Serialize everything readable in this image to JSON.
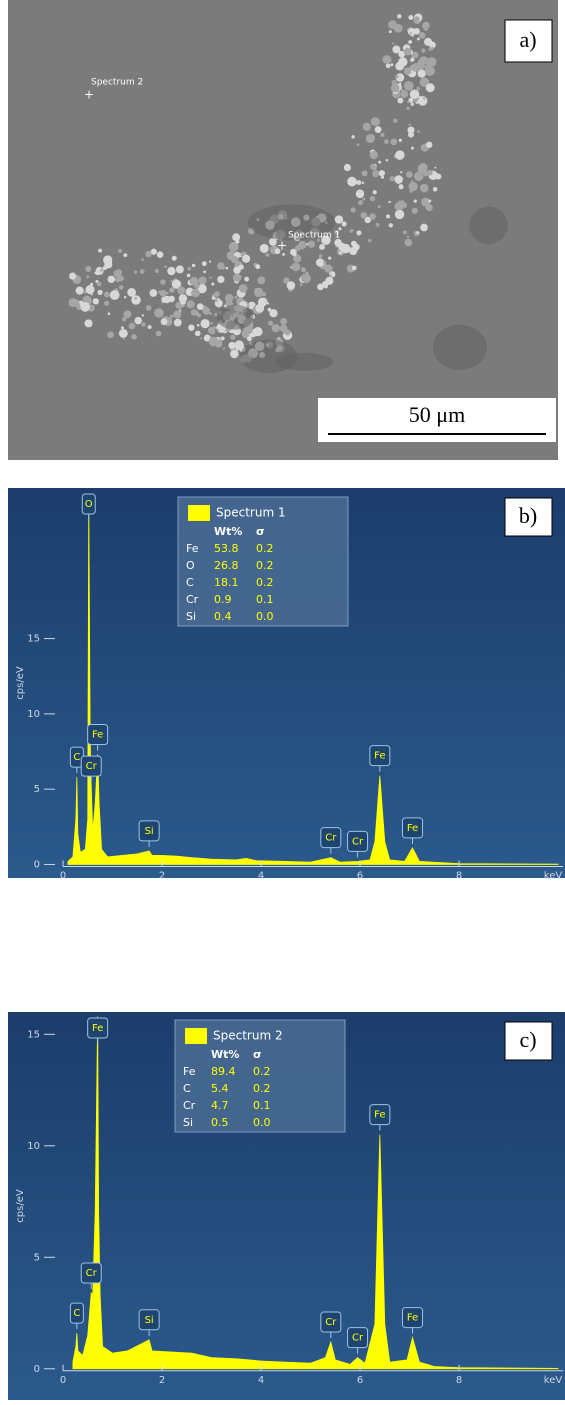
{
  "panel_a": {
    "label": "a)",
    "markers": [
      "Spectrum 2",
      "Spectrum 1"
    ],
    "scale_bar": "50 μm"
  },
  "chart_data": [
    {
      "type": "area",
      "panel_label": "b)",
      "x_label": "keV",
      "y_label": "cps/eV",
      "xlim": [
        0,
        10.1
      ],
      "xticks": [
        0,
        2,
        4,
        6,
        8
      ],
      "ylim": [
        -0.9,
        25
      ],
      "yticks": [
        0,
        5,
        10,
        15
      ],
      "series": [
        {
          "name": "Spectrum 1",
          "color": "#ffff00",
          "x": [
            0.1,
            0.2,
            0.26,
            0.28,
            0.3,
            0.35,
            0.45,
            0.5,
            0.52,
            0.55,
            0.57,
            0.6,
            0.65,
            0.7,
            0.73,
            0.78,
            0.9,
            1.2,
            1.5,
            1.74,
            1.8,
            2.0,
            2.3,
            2.6,
            3.0,
            3.5,
            3.7,
            3.9,
            4.5,
            5.0,
            5.41,
            5.6,
            5.95,
            6.2,
            6.3,
            6.4,
            6.5,
            6.6,
            6.9,
            7.06,
            7.2,
            8.0,
            10.0
          ],
          "values": [
            0.2,
            0.5,
            3,
            5.8,
            2,
            0.8,
            1.0,
            3,
            24.5,
            8,
            5.2,
            2.2,
            4,
            7.3,
            4,
            1.0,
            0.5,
            0.6,
            0.7,
            0.9,
            0.6,
            0.6,
            0.55,
            0.45,
            0.35,
            0.3,
            0.4,
            0.25,
            0.2,
            0.15,
            0.45,
            0.15,
            0.2,
            0.3,
            1.5,
            5.9,
            1.5,
            0.3,
            0.2,
            1.1,
            0.2,
            0.05,
            0.02
          ]
        }
      ],
      "peaks": [
        {
          "label": "O",
          "x": 0.52
        },
        {
          "label": "C",
          "x": 0.28
        },
        {
          "label": "Cr",
          "x": 0.57
        },
        {
          "label": "Fe",
          "x": 0.7
        },
        {
          "label": "Si",
          "x": 1.74
        },
        {
          "label": "Cr",
          "x": 5.41
        },
        {
          "label": "Cr",
          "x": 5.95
        },
        {
          "label": "Fe",
          "x": 6.4
        },
        {
          "label": "Fe",
          "x": 7.06
        }
      ],
      "table": {
        "columns": [
          "Wt%",
          "σ"
        ],
        "rows": [
          [
            "Fe",
            "53.8",
            "0.2"
          ],
          [
            "O",
            "26.8",
            "0.2"
          ],
          [
            "C",
            "18.1",
            "0.2"
          ],
          [
            "Cr",
            "0.9",
            "0.1"
          ],
          [
            "Si",
            "0.4",
            "0.0"
          ]
        ]
      }
    },
    {
      "type": "area",
      "panel_label": "c)",
      "x_label": "keV",
      "y_label": "cps/eV",
      "xlim": [
        0,
        10.1
      ],
      "xticks": [
        0,
        2,
        4,
        6,
        8
      ],
      "ylim": [
        -1.4,
        16
      ],
      "yticks": [
        0,
        5,
        10,
        15
      ],
      "series": [
        {
          "name": "Spectrum 2",
          "color": "#ffff00",
          "x": [
            0.2,
            0.26,
            0.28,
            0.3,
            0.4,
            0.5,
            0.57,
            0.6,
            0.65,
            0.7,
            0.72,
            0.75,
            0.8,
            1.0,
            1.3,
            1.74,
            1.8,
            2.2,
            2.6,
            3.0,
            3.5,
            4.0,
            4.5,
            5.0,
            5.3,
            5.41,
            5.5,
            5.8,
            5.95,
            6.1,
            6.3,
            6.4,
            6.5,
            6.6,
            6.95,
            7.06,
            7.2,
            7.5,
            8.0,
            10.0
          ],
          "values": [
            0.3,
            1.0,
            1.6,
            0.8,
            0.6,
            1.5,
            3.4,
            3.3,
            7,
            15.8,
            7,
            3.3,
            1.0,
            0.7,
            0.8,
            1.3,
            0.8,
            0.75,
            0.7,
            0.5,
            0.45,
            0.35,
            0.3,
            0.25,
            0.5,
            1.2,
            0.4,
            0.2,
            0.5,
            0.25,
            2,
            10.5,
            2,
            0.3,
            0.4,
            1.4,
            0.3,
            0.1,
            0.05,
            0.02
          ]
        }
      ],
      "peaks": [
        {
          "label": "Fe",
          "x": 0.7
        },
        {
          "label": "Cr",
          "x": 0.57
        },
        {
          "label": "C",
          "x": 0.28
        },
        {
          "label": "Si",
          "x": 1.74
        },
        {
          "label": "Cr",
          "x": 5.41
        },
        {
          "label": "Cr",
          "x": 5.95
        },
        {
          "label": "Fe",
          "x": 6.4
        },
        {
          "label": "Fe",
          "x": 7.06
        }
      ],
      "table": {
        "columns": [
          "Wt%",
          "σ"
        ],
        "rows": [
          [
            "Fe",
            "89.4",
            "0.2"
          ],
          [
            "C",
            "5.4",
            "0.2"
          ],
          [
            "Cr",
            "4.7",
            "0.1"
          ],
          [
            "Si",
            "0.5",
            "0.0"
          ]
        ]
      }
    }
  ]
}
